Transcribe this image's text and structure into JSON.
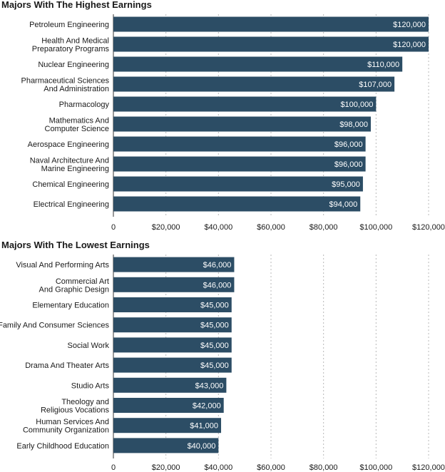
{
  "colors": {
    "bar": "#2c4d65",
    "grid": "#b8b8b8",
    "text": "#1a1a1a",
    "value_text": "#ffffff"
  },
  "chart_data": [
    {
      "type": "bar",
      "orientation": "horizontal",
      "title": "Majors With The Highest Earnings",
      "categories": [
        "Petroleum Engineering",
        "Health And Medical\nPreparatory Programs",
        "Nuclear Engineering",
        "Pharmaceutical Sciences\nAnd Administration",
        "Pharmacology",
        "Mathematics And\nComputer Science",
        "Aerospace Engineering",
        "Naval Architecture And\nMarine Engineering",
        "Chemical Engineering",
        "Electrical Engineering"
      ],
      "values": [
        120000,
        120000,
        110000,
        107000,
        100000,
        98000,
        96000,
        96000,
        95000,
        94000
      ],
      "value_labels": [
        "$120,000",
        "$120,000",
        "$110,000",
        "$107,000",
        "$100,000",
        "$98,000",
        "$96,000",
        "$96,000",
        "$95,000",
        "$94,000"
      ],
      "xlim": [
        0,
        120000
      ],
      "xticks": [
        0,
        20000,
        40000,
        60000,
        80000,
        100000,
        120000
      ],
      "xtick_labels": [
        "0",
        "$20,000",
        "$40,000",
        "$60,000",
        "$80,000",
        "$100,000",
        "$120,000"
      ],
      "xlabel": "",
      "ylabel": "",
      "grid": true
    },
    {
      "type": "bar",
      "orientation": "horizontal",
      "title": "Majors With The Lowest Earnings",
      "categories": [
        "Visual And Performing Arts",
        "Commercial Art\nAnd Graphic Design",
        "Elementary Education",
        "Family And Consumer Sciences",
        "Social Work",
        "Drama And Theater Arts",
        "Studio Arts",
        "Theology and\nReligious Vocations",
        "Human Services And\nCommunity Organization",
        "Early Childhood Education"
      ],
      "values": [
        46000,
        46000,
        45000,
        45000,
        45000,
        45000,
        43000,
        42000,
        41000,
        40000
      ],
      "value_labels": [
        "$46,000",
        "$46,000",
        "$45,000",
        "$45,000",
        "$45,000",
        "$45,000",
        "$43,000",
        "$42,000",
        "$41,000",
        "$40,000"
      ],
      "xlim": [
        0,
        120000
      ],
      "xticks": [
        0,
        20000,
        40000,
        60000,
        80000,
        100000,
        120000
      ],
      "xtick_labels": [
        "0",
        "$20,000",
        "$40,000",
        "$60,000",
        "$80,000",
        "$100,000",
        "$120,000"
      ],
      "xlabel": "",
      "ylabel": "",
      "grid": true
    }
  ]
}
